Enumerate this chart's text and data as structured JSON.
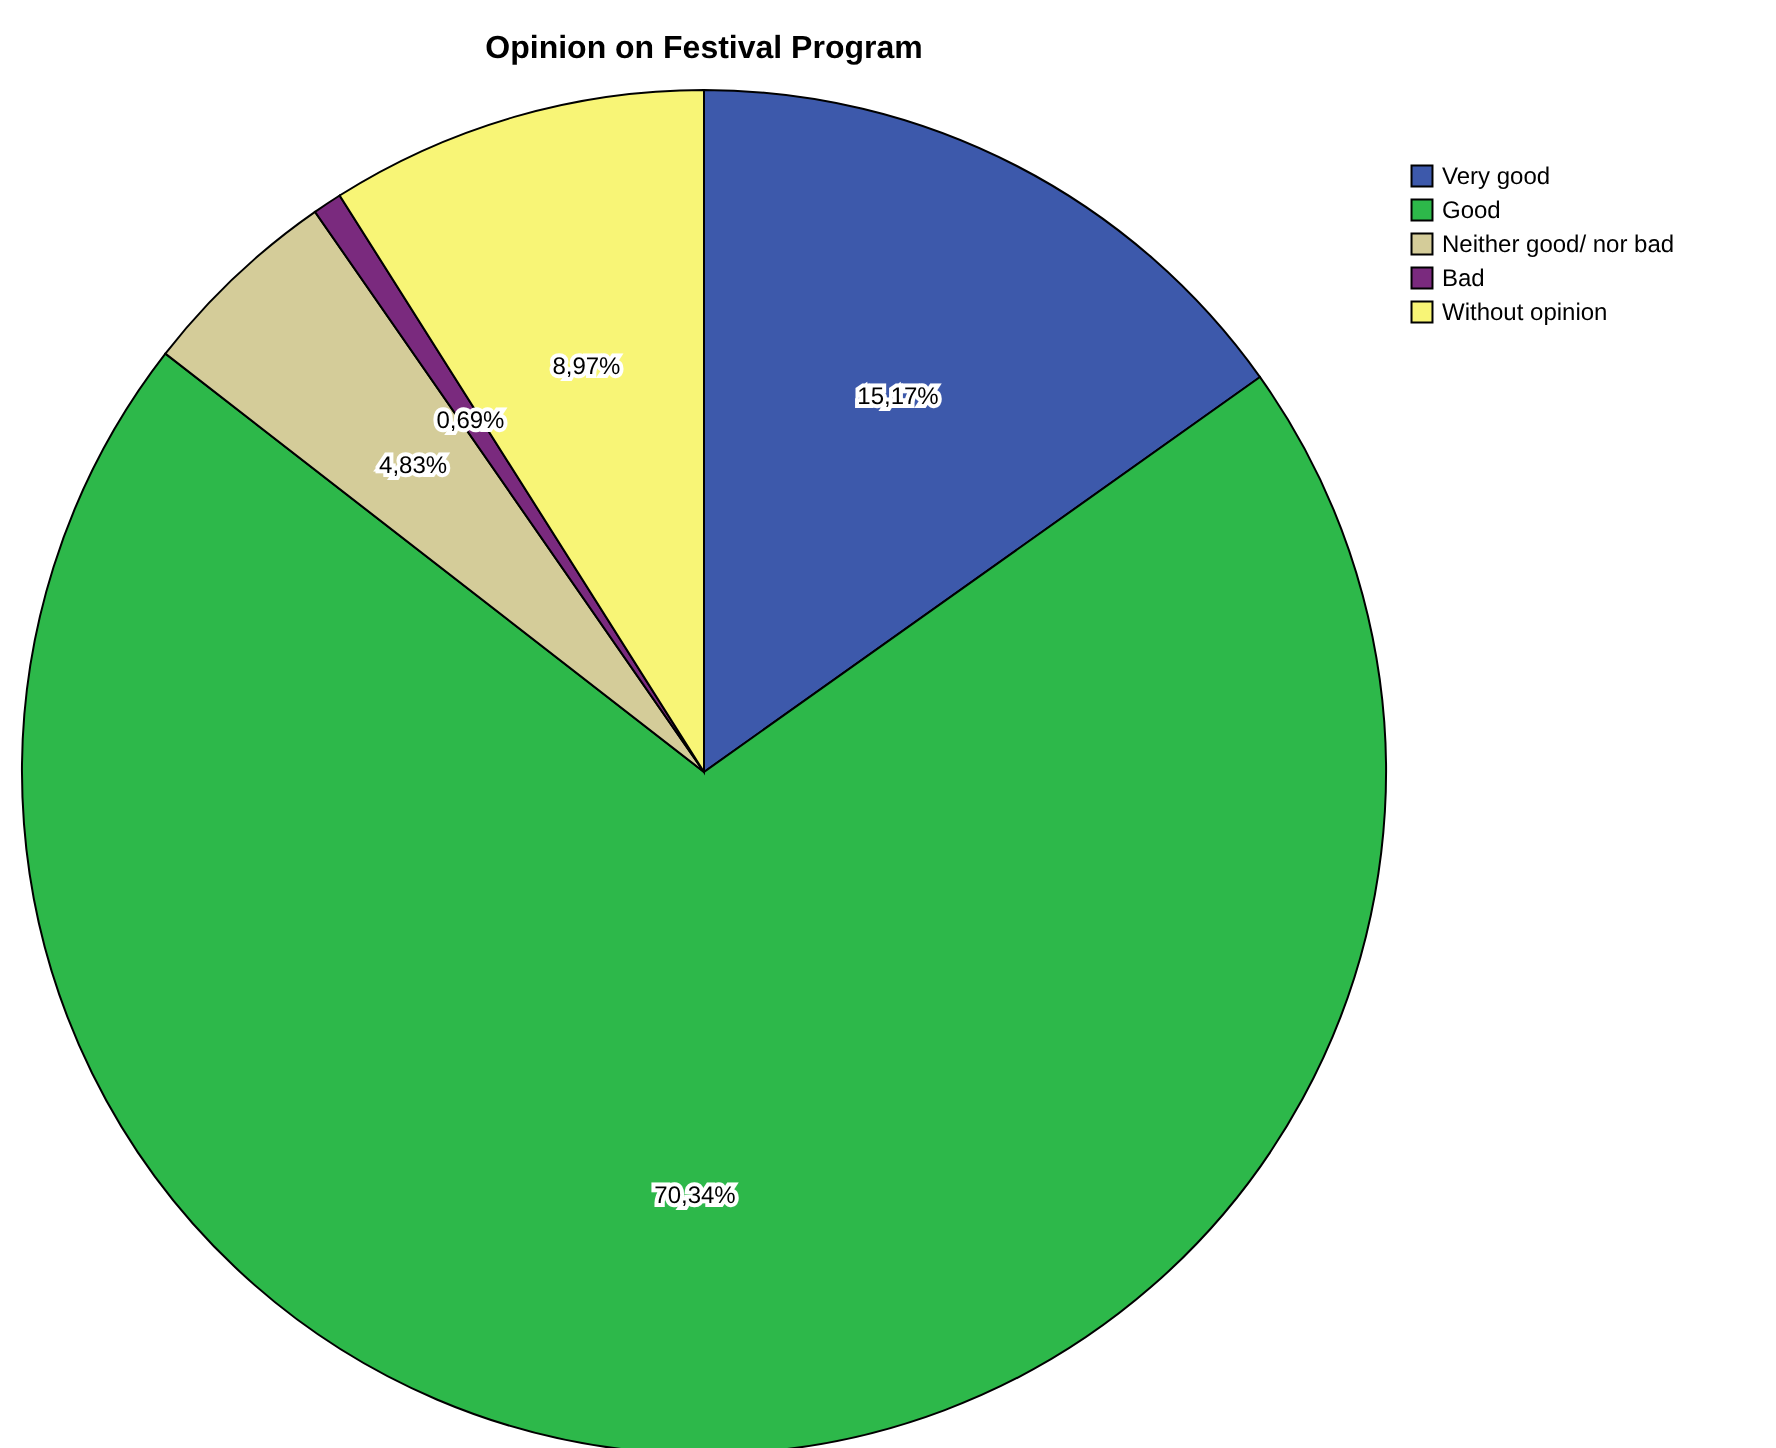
{
  "chart_data": {
    "type": "pie",
    "title": "Opinion on Festival Program",
    "categories": [
      "Very good",
      "Good",
      "Neither good/ nor bad",
      "Bad",
      "Without opinion"
    ],
    "values": [
      15.17,
      70.34,
      4.83,
      0.69,
      8.97
    ],
    "value_labels": [
      "15,17%",
      "70,34%",
      "4,83%",
      "0,69%",
      "8,97%"
    ],
    "colors": [
      "#3d59ab",
      "#2db84a",
      "#d4cc99",
      "#7a2a7e",
      "#f8f576"
    ],
    "legend": "top right"
  }
}
